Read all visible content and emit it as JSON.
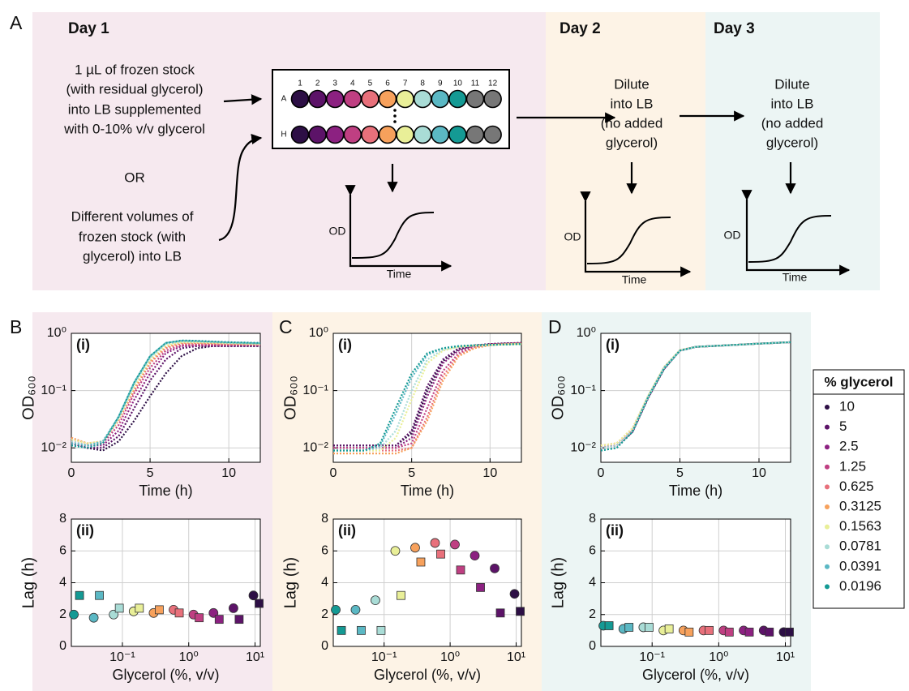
{
  "panel_labels": [
    "A",
    "B",
    "C",
    "D"
  ],
  "diagram": {
    "day_titles": [
      "Day 1",
      "Day 2",
      "Day 3"
    ],
    "day1_text": [
      "1 µL of frozen stock",
      "(with residual glycerol)",
      "into LB supplemented",
      "with 0-10% v/v glycerol"
    ],
    "or": "OR",
    "day1_alt_text": [
      "Different volumes of",
      "frozen stock (with",
      "glycerol) into LB"
    ],
    "dilute_text": [
      [
        "Dilute",
        "into LB",
        "(no added",
        "glycerol)"
      ],
      [
        "Dilute",
        "into LB",
        "(no added",
        "glycerol)"
      ]
    ],
    "plate": {
      "columns": [
        "1",
        "2",
        "3",
        "4",
        "5",
        "6",
        "7",
        "8",
        "9",
        "10",
        "11",
        "12"
      ],
      "rows": [
        "A",
        "H"
      ]
    },
    "mini_plot": {
      "y_label": "OD",
      "x_label": "Time"
    }
  },
  "legend": {
    "title": "% glycerol",
    "labels": [
      "10",
      "5",
      "2.5",
      "1.25",
      "0.625",
      "0.3125",
      "0.1563",
      "0.0781",
      "0.0391",
      "0.0196"
    ],
    "colors": [
      "#2d0f45",
      "#5c1368",
      "#8c2181",
      "#bf3f82",
      "#e8707b",
      "#f7a15c",
      "#e9ef98",
      "#a9dcd6",
      "#5bb8c4",
      "#149a94"
    ]
  },
  "chart_data": [
    {
      "type": "line",
      "panel_tag": "(i)",
      "xlabel": "Time (h)",
      "ylabel": "OD₆₀₀",
      "x": [
        0,
        1,
        2,
        3,
        4,
        5,
        6,
        7,
        8,
        9,
        10,
        11,
        12
      ],
      "xlim": [
        0,
        12
      ],
      "xticks": [
        0,
        5,
        10
      ],
      "log_y": true,
      "ylim": [
        0.0056,
        1
      ],
      "yticks": [
        {
          "value": 0.01,
          "label": "10⁻²"
        },
        {
          "value": 0.1,
          "label": "10⁻¹"
        },
        {
          "value": 1,
          "label": "10⁰"
        }
      ],
      "grid": true,
      "series": [
        {
          "color": "#2d0f45",
          "values": [
            0.012,
            0.01,
            0.009,
            0.013,
            0.03,
            0.08,
            0.2,
            0.4,
            0.55,
            0.6,
            0.6,
            0.6,
            0.6
          ]
        },
        {
          "color": "#5c1368",
          "values": [
            0.012,
            0.01,
            0.01,
            0.016,
            0.05,
            0.15,
            0.35,
            0.55,
            0.6,
            0.6,
            0.6,
            0.6,
            0.6
          ]
        },
        {
          "color": "#8c2181",
          "values": [
            0.013,
            0.011,
            0.011,
            0.02,
            0.07,
            0.2,
            0.45,
            0.6,
            0.62,
            0.62,
            0.62,
            0.62,
            0.62
          ]
        },
        {
          "color": "#bf3f82",
          "values": [
            0.014,
            0.012,
            0.012,
            0.025,
            0.09,
            0.25,
            0.5,
            0.62,
            0.63,
            0.63,
            0.63,
            0.63,
            0.63
          ]
        },
        {
          "color": "#e8707b",
          "values": [
            0.015,
            0.012,
            0.013,
            0.03,
            0.1,
            0.3,
            0.55,
            0.65,
            0.65,
            0.65,
            0.64,
            0.64,
            0.63
          ]
        },
        {
          "color": "#f7a15c",
          "values": [
            0.015,
            0.012,
            0.013,
            0.03,
            0.11,
            0.32,
            0.58,
            0.68,
            0.68,
            0.67,
            0.66,
            0.65,
            0.65
          ]
        },
        {
          "color": "#e9ef98",
          "values": [
            0.014,
            0.012,
            0.013,
            0.032,
            0.12,
            0.35,
            0.62,
            0.7,
            0.7,
            0.68,
            0.67,
            0.66,
            0.65
          ]
        },
        {
          "color": "#a9dcd6",
          "values": [
            0.013,
            0.011,
            0.013,
            0.033,
            0.13,
            0.37,
            0.65,
            0.72,
            0.72,
            0.7,
            0.68,
            0.67,
            0.66
          ]
        },
        {
          "color": "#5bb8c4",
          "values": [
            0.012,
            0.011,
            0.013,
            0.035,
            0.14,
            0.4,
            0.68,
            0.74,
            0.73,
            0.71,
            0.69,
            0.68,
            0.67
          ]
        },
        {
          "color": "#149a94",
          "values": [
            0.011,
            0.01,
            0.012,
            0.035,
            0.14,
            0.4,
            0.68,
            0.75,
            0.74,
            0.72,
            0.7,
            0.69,
            0.68
          ]
        }
      ]
    },
    {
      "type": "line",
      "panel_tag": "(i)",
      "xlabel": "Time (h)",
      "ylabel": "OD₆₀₀",
      "x": [
        0,
        1,
        2,
        3,
        4,
        5,
        6,
        7,
        8,
        9,
        10,
        11,
        12
      ],
      "xlim": [
        0,
        12
      ],
      "xticks": [
        0,
        5,
        10
      ],
      "log_y": true,
      "ylim": [
        0.0056,
        1
      ],
      "yticks": [
        {
          "value": 0.01,
          "label": "10⁻²"
        },
        {
          "value": 0.1,
          "label": "10⁻¹"
        },
        {
          "value": 1,
          "label": "10⁰"
        }
      ],
      "grid": true,
      "series": [
        {
          "color": "#2d0f45",
          "values": [
            0.011,
            0.011,
            0.011,
            0.011,
            0.011,
            0.018,
            0.1,
            0.33,
            0.53,
            0.61,
            0.65,
            0.67,
            0.68
          ]
        },
        {
          "color": "#5c1368",
          "values": [
            0.011,
            0.011,
            0.011,
            0.011,
            0.011,
            0.02,
            0.12,
            0.35,
            0.55,
            0.62,
            0.65,
            0.67,
            0.68
          ]
        },
        {
          "color": "#8c2181",
          "values": [
            0.01,
            0.01,
            0.01,
            0.01,
            0.01,
            0.015,
            0.08,
            0.3,
            0.5,
            0.6,
            0.64,
            0.66,
            0.67
          ]
        },
        {
          "color": "#bf3f82",
          "values": [
            0.01,
            0.01,
            0.01,
            0.01,
            0.01,
            0.012,
            0.05,
            0.22,
            0.45,
            0.58,
            0.64,
            0.66,
            0.67
          ]
        },
        {
          "color": "#e8707b",
          "values": [
            0.009,
            0.009,
            0.009,
            0.009,
            0.009,
            0.01,
            0.035,
            0.18,
            0.42,
            0.56,
            0.63,
            0.65,
            0.66
          ]
        },
        {
          "color": "#f7a15c",
          "values": [
            0.008,
            0.008,
            0.008,
            0.008,
            0.008,
            0.01,
            0.03,
            0.15,
            0.4,
            0.55,
            0.62,
            0.65,
            0.66
          ]
        },
        {
          "color": "#e9ef98",
          "values": [
            0.009,
            0.009,
            0.009,
            0.009,
            0.015,
            0.07,
            0.3,
            0.5,
            0.58,
            0.61,
            0.63,
            0.64,
            0.65
          ]
        },
        {
          "color": "#a9dcd6",
          "values": [
            0.009,
            0.009,
            0.009,
            0.01,
            0.02,
            0.1,
            0.35,
            0.52,
            0.58,
            0.61,
            0.63,
            0.64,
            0.65
          ]
        },
        {
          "color": "#5bb8c4",
          "values": [
            0.009,
            0.009,
            0.009,
            0.011,
            0.04,
            0.17,
            0.42,
            0.55,
            0.6,
            0.62,
            0.63,
            0.64,
            0.65
          ]
        },
        {
          "color": "#149a94",
          "values": [
            0.009,
            0.009,
            0.009,
            0.012,
            0.05,
            0.2,
            0.45,
            0.55,
            0.6,
            0.62,
            0.63,
            0.64,
            0.65
          ]
        }
      ]
    },
    {
      "type": "line",
      "panel_tag": "(i)",
      "xlabel": "Time (h)",
      "ylabel": "OD₆₀₀",
      "x": [
        0,
        1,
        2,
        3,
        4,
        5,
        6,
        7,
        8,
        9,
        10,
        11,
        12
      ],
      "xlim": [
        0,
        12
      ],
      "xticks": [
        0,
        5,
        10
      ],
      "log_y": true,
      "ylim": [
        0.0056,
        1
      ],
      "yticks": [
        {
          "value": 0.01,
          "label": "10⁻²"
        },
        {
          "value": 0.1,
          "label": "10⁻¹"
        },
        {
          "value": 1,
          "label": "10⁰"
        }
      ],
      "grid": true,
      "series": [
        {
          "color": "#2d0f45",
          "values": [
            0.01,
            0.011,
            0.019,
            0.075,
            0.24,
            0.5,
            0.58,
            0.6,
            0.62,
            0.64,
            0.66,
            0.68,
            0.7
          ]
        },
        {
          "color": "#5c1368",
          "values": [
            0.01,
            0.011,
            0.019,
            0.076,
            0.24,
            0.5,
            0.58,
            0.6,
            0.62,
            0.64,
            0.66,
            0.68,
            0.7
          ]
        },
        {
          "color": "#8c2181",
          "values": [
            0.01,
            0.011,
            0.02,
            0.078,
            0.25,
            0.5,
            0.58,
            0.6,
            0.62,
            0.64,
            0.66,
            0.68,
            0.7
          ]
        },
        {
          "color": "#bf3f82",
          "values": [
            0.01,
            0.011,
            0.02,
            0.08,
            0.25,
            0.5,
            0.58,
            0.6,
            0.62,
            0.64,
            0.66,
            0.68,
            0.7
          ]
        },
        {
          "color": "#e8707b",
          "values": [
            0.011,
            0.012,
            0.021,
            0.08,
            0.25,
            0.5,
            0.58,
            0.6,
            0.62,
            0.64,
            0.66,
            0.68,
            0.7
          ]
        },
        {
          "color": "#f7a15c",
          "values": [
            0.011,
            0.012,
            0.022,
            0.082,
            0.26,
            0.51,
            0.58,
            0.6,
            0.62,
            0.64,
            0.66,
            0.68,
            0.7
          ]
        },
        {
          "color": "#e9ef98",
          "values": [
            0.011,
            0.012,
            0.022,
            0.083,
            0.26,
            0.51,
            0.58,
            0.6,
            0.62,
            0.64,
            0.66,
            0.68,
            0.7
          ]
        },
        {
          "color": "#a9dcd6",
          "values": [
            0.01,
            0.011,
            0.02,
            0.08,
            0.25,
            0.5,
            0.58,
            0.6,
            0.62,
            0.64,
            0.66,
            0.68,
            0.7
          ]
        },
        {
          "color": "#5bb8c4",
          "values": [
            0.009,
            0.01,
            0.019,
            0.078,
            0.25,
            0.5,
            0.58,
            0.6,
            0.62,
            0.64,
            0.66,
            0.68,
            0.7
          ]
        },
        {
          "color": "#149a94",
          "values": [
            0.009,
            0.01,
            0.019,
            0.077,
            0.24,
            0.5,
            0.58,
            0.6,
            0.62,
            0.64,
            0.66,
            0.68,
            0.7
          ]
        }
      ]
    },
    {
      "type": "scatter",
      "panel_tag": "(ii)",
      "xlabel": "Glycerol (%, v/v)",
      "ylabel": "Lag (h)",
      "x": [
        0.0196,
        0.0391,
        0.0781,
        0.1563,
        0.3125,
        0.625,
        1.25,
        2.5,
        5,
        10
      ],
      "colors": [
        "#149a94",
        "#5bb8c4",
        "#a9dcd6",
        "#e9ef98",
        "#f7a15c",
        "#e8707b",
        "#bf3f82",
        "#8c2181",
        "#5c1368",
        "#2d0f45"
      ],
      "log_x": true,
      "xlim": [
        0.017,
        12
      ],
      "xticks": [
        {
          "value": 0.1,
          "label": "10⁻¹"
        },
        {
          "value": 1,
          "label": "10⁰"
        },
        {
          "value": 10,
          "label": "10¹"
        }
      ],
      "ylim": [
        0,
        8
      ],
      "yticks": [
        0,
        2,
        4,
        6,
        8
      ],
      "grid": true,
      "series": [
        {
          "marker": "circle",
          "values": [
            2.0,
            1.8,
            2.0,
            2.2,
            2.1,
            2.3,
            2.0,
            2.1,
            2.4,
            3.2
          ]
        },
        {
          "marker": "square",
          "values": [
            3.2,
            3.2,
            2.4,
            2.4,
            2.3,
            2.1,
            1.8,
            1.7,
            1.7,
            2.7
          ]
        }
      ]
    },
    {
      "type": "scatter",
      "panel_tag": "(ii)",
      "xlabel": "Glycerol (%, v/v)",
      "ylabel": "Lag (h)",
      "x": [
        0.0196,
        0.0391,
        0.0781,
        0.1563,
        0.3125,
        0.625,
        1.25,
        2.5,
        5,
        10
      ],
      "colors": [
        "#149a94",
        "#5bb8c4",
        "#a9dcd6",
        "#e9ef98",
        "#f7a15c",
        "#e8707b",
        "#bf3f82",
        "#8c2181",
        "#5c1368",
        "#2d0f45"
      ],
      "log_x": true,
      "xlim": [
        0.017,
        12
      ],
      "xticks": [
        {
          "value": 0.1,
          "label": "10⁻¹"
        },
        {
          "value": 1,
          "label": "10⁰"
        },
        {
          "value": 10,
          "label": "10¹"
        }
      ],
      "ylim": [
        0,
        8
      ],
      "yticks": [
        0,
        2,
        4,
        6,
        8
      ],
      "grid": true,
      "series": [
        {
          "marker": "circle",
          "values": [
            2.3,
            2.3,
            2.9,
            6.0,
            6.2,
            6.5,
            6.4,
            5.7,
            4.9,
            3.3
          ]
        },
        {
          "marker": "square",
          "values": [
            1.0,
            1.0,
            1.0,
            3.2,
            5.3,
            5.8,
            4.8,
            3.7,
            2.1,
            2.2
          ]
        }
      ]
    },
    {
      "type": "scatter",
      "panel_tag": "(ii)",
      "xlabel": "Glycerol (%, v/v)",
      "ylabel": "Lag (h)",
      "x": [
        0.0196,
        0.0391,
        0.0781,
        0.1563,
        0.3125,
        0.625,
        1.25,
        2.5,
        5,
        10
      ],
      "colors": [
        "#149a94",
        "#5bb8c4",
        "#a9dcd6",
        "#e9ef98",
        "#f7a15c",
        "#e8707b",
        "#bf3f82",
        "#8c2181",
        "#5c1368",
        "#2d0f45"
      ],
      "log_x": true,
      "xlim": [
        0.017,
        12
      ],
      "xticks": [
        {
          "value": 0.1,
          "label": "10⁻¹"
        },
        {
          "value": 1,
          "label": "10⁰"
        },
        {
          "value": 10,
          "label": "10¹"
        }
      ],
      "ylim": [
        0,
        8
      ],
      "yticks": [
        0,
        2,
        4,
        6,
        8
      ],
      "grid": true,
      "series": [
        {
          "marker": "circle",
          "values": [
            1.3,
            1.1,
            1.2,
            1.0,
            1.0,
            1.0,
            1.0,
            1.0,
            1.0,
            0.9
          ]
        },
        {
          "marker": "square",
          "values": [
            1.3,
            1.2,
            1.2,
            1.1,
            0.9,
            1.0,
            0.9,
            0.9,
            0.9,
            0.9
          ]
        }
      ]
    }
  ]
}
